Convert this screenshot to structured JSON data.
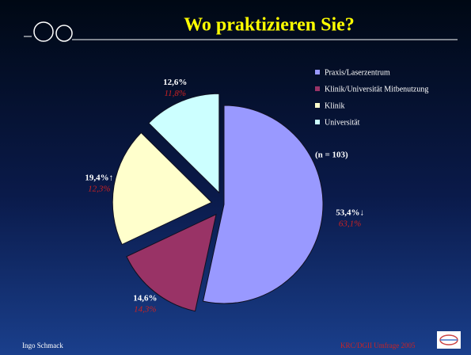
{
  "chart_data": {
    "type": "pie",
    "title": "Wo praktizieren Sie?",
    "categories": [
      "Praxis/Laserzentrum",
      "Klinik/Universität Mitbenutzung",
      "Klinik",
      "Universität"
    ],
    "values": [
      53.4,
      14.6,
      19.4,
      12.6
    ],
    "value_labels": [
      "53,4%↓",
      "14,6%",
      "19,4%↑",
      "12,6%"
    ],
    "colors": [
      "#9999ff",
      "#993366",
      "#ffffcc",
      "#ccffff"
    ],
    "previous_values": [
      63.1,
      14.3,
      12.3,
      11.8
    ],
    "previous_value_labels": [
      "63,1%",
      "14,3%",
      "12,3%",
      "11,8%"
    ],
    "annotation": "(n = 103)",
    "footer_left": "Ingo Schmack",
    "footer_right": "KRC/DGII Umfrage 2005"
  }
}
